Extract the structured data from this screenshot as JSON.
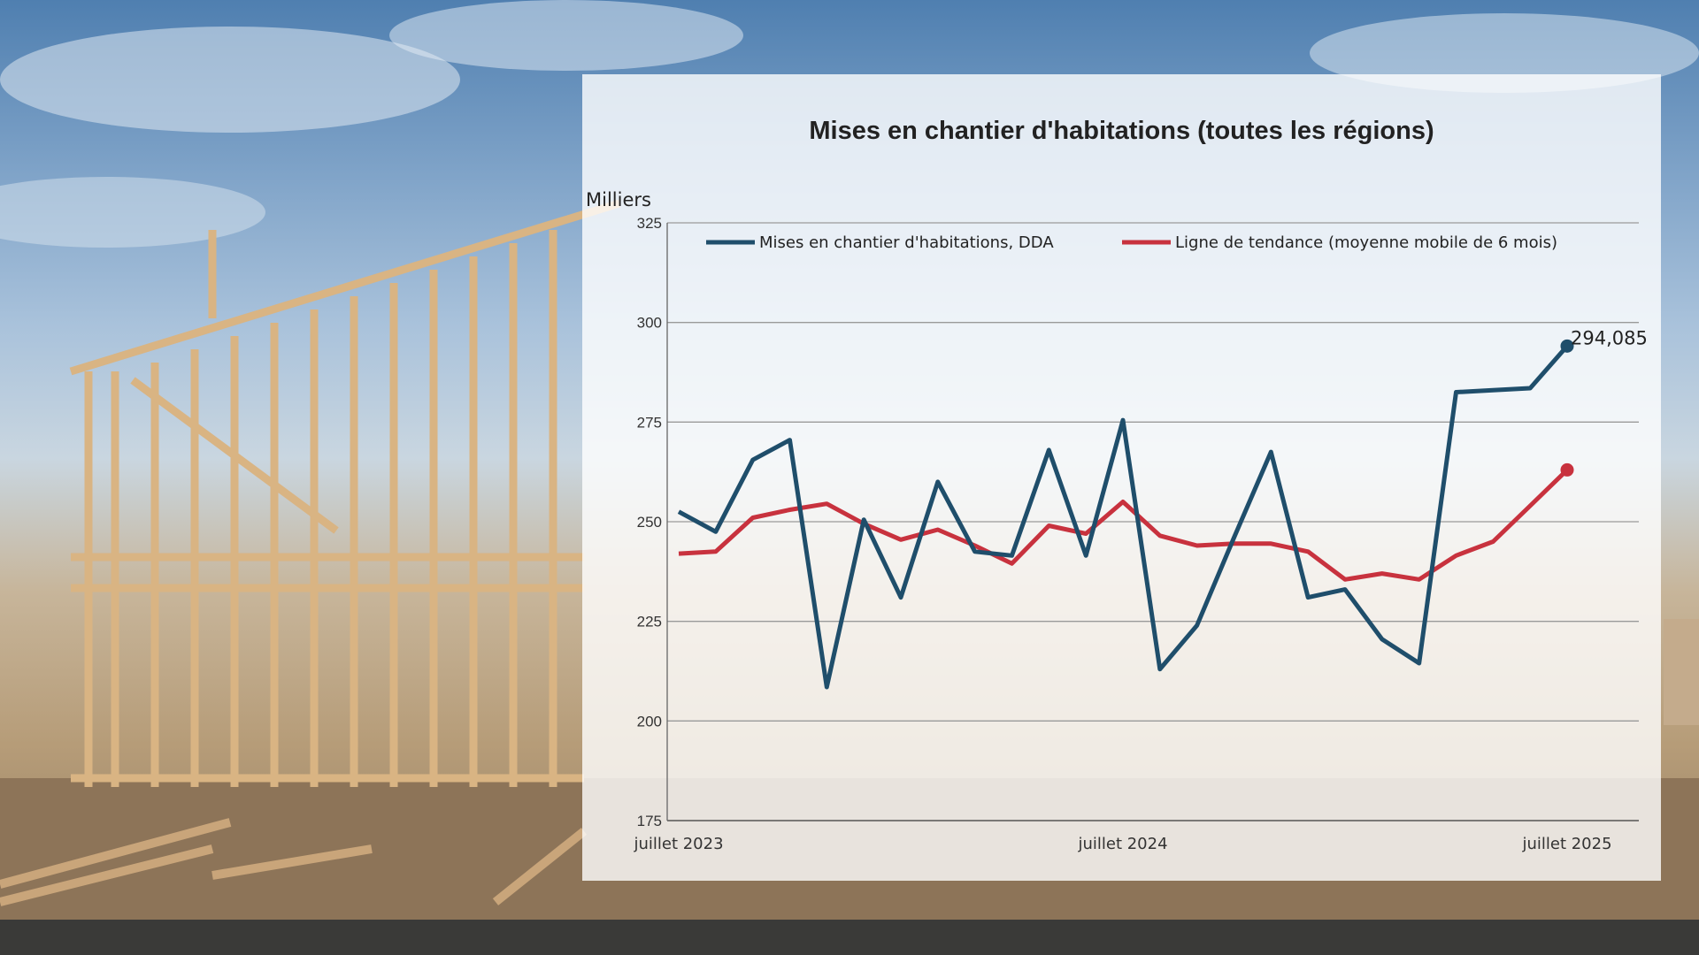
{
  "chart_data": {
    "type": "line",
    "title": "Mises en chantier d'habitations (toutes les régions)",
    "ylabel": "Milliers",
    "xlabel": "",
    "ylim": [
      175,
      325
    ],
    "yticks": [
      175,
      200,
      225,
      250,
      275,
      300,
      325
    ],
    "x": [
      "2023-07",
      "2023-08",
      "2023-09",
      "2023-10",
      "2023-11",
      "2023-12",
      "2024-01",
      "2024-02",
      "2024-03",
      "2024-04",
      "2024-05",
      "2024-06",
      "2024-07",
      "2024-08",
      "2024-09",
      "2024-10",
      "2024-11",
      "2024-12",
      "2025-01",
      "2025-02",
      "2025-03",
      "2025-04",
      "2025-05",
      "2025-06",
      "2025-07"
    ],
    "xtick_labels": [
      {
        "x": "2023-07",
        "label": "juillet 2023"
      },
      {
        "x": "2024-07",
        "label": "juillet 2024"
      },
      {
        "x": "2025-07",
        "label": "juillet 2025"
      }
    ],
    "grid": true,
    "legend_position": "top",
    "series": [
      {
        "name": "Mises en chantier d'habitations, DDA",
        "color": "#1f4e6b",
        "values": [
          252.5,
          247.5,
          265.5,
          270.5,
          208.5,
          250.5,
          231,
          260,
          242.5,
          241.5,
          268,
          241.5,
          275.5,
          213,
          224,
          246,
          267.5,
          231,
          233,
          220.5,
          214.5,
          282.5,
          283,
          283.5,
          294.085
        ]
      },
      {
        "name": "Ligne de tendance (moyenne mobile de 6 mois)",
        "color": "#c8323e",
        "values": [
          242,
          242.5,
          251,
          253,
          254.5,
          249.5,
          245.5,
          248,
          244,
          239.5,
          249,
          247,
          255,
          246.5,
          244,
          244.5,
          244.5,
          242.5,
          235.5,
          237,
          235.5,
          241.5,
          245,
          254,
          263
        ]
      }
    ],
    "annotations": [
      {
        "series": 0,
        "x": "2025-07",
        "label": "294,085"
      }
    ]
  }
}
